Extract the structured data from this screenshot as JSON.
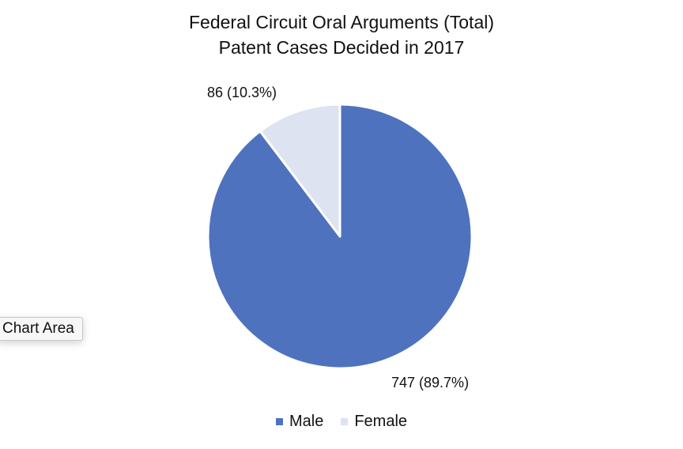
{
  "chart_data": {
    "type": "pie",
    "title": [
      "Federal Circuit Oral Arguments (Total)",
      "Patent Cases Decided in 2017"
    ],
    "categories": [
      "Male",
      "Female"
    ],
    "values": [
      747,
      86
    ],
    "data_labels": [
      "747 (89.7%)",
      "86 (10.3%)"
    ],
    "colors": [
      "#4f72bf",
      "#dde3f1"
    ],
    "legend_position": "bottom",
    "start_angle_deg": 0,
    "direction": "clockwise"
  },
  "tooltip": {
    "text": "Chart Area"
  }
}
